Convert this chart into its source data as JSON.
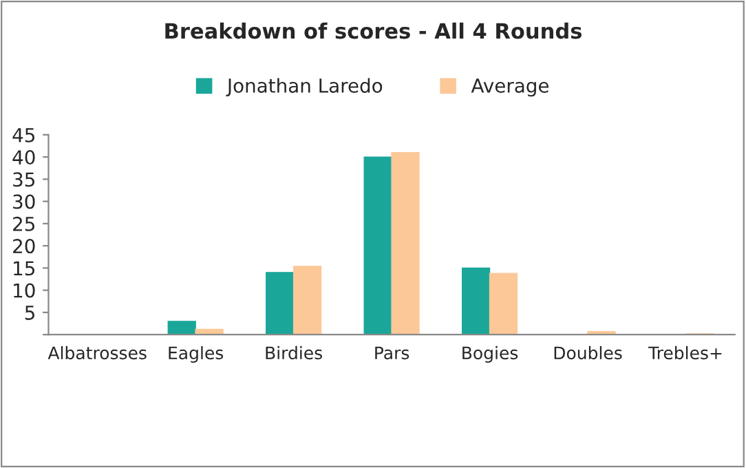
{
  "chart_data": {
    "type": "bar",
    "title": "Breakdown of scores - All 4 Rounds",
    "categories": [
      "Albatrosses",
      "Eagles",
      "Birdies",
      "Pars",
      "Bogies",
      "Doubles",
      "Trebles+"
    ],
    "series": [
      {
        "name": "Jonathan Laredo",
        "color": "#1aa79a",
        "values": [
          0,
          3,
          14,
          40,
          15,
          0,
          0
        ]
      },
      {
        "name": "Average",
        "color": "#fcc898",
        "values": [
          0,
          1.2,
          15.4,
          41,
          13.8,
          0.7,
          0.2
        ]
      }
    ],
    "ylim": [
      0,
      45
    ],
    "yticks": [
      {
        "value": 0,
        "label": null
      },
      5,
      10,
      15,
      20,
      25,
      30,
      35,
      40,
      45
    ],
    "grid": false,
    "legend": "top"
  }
}
